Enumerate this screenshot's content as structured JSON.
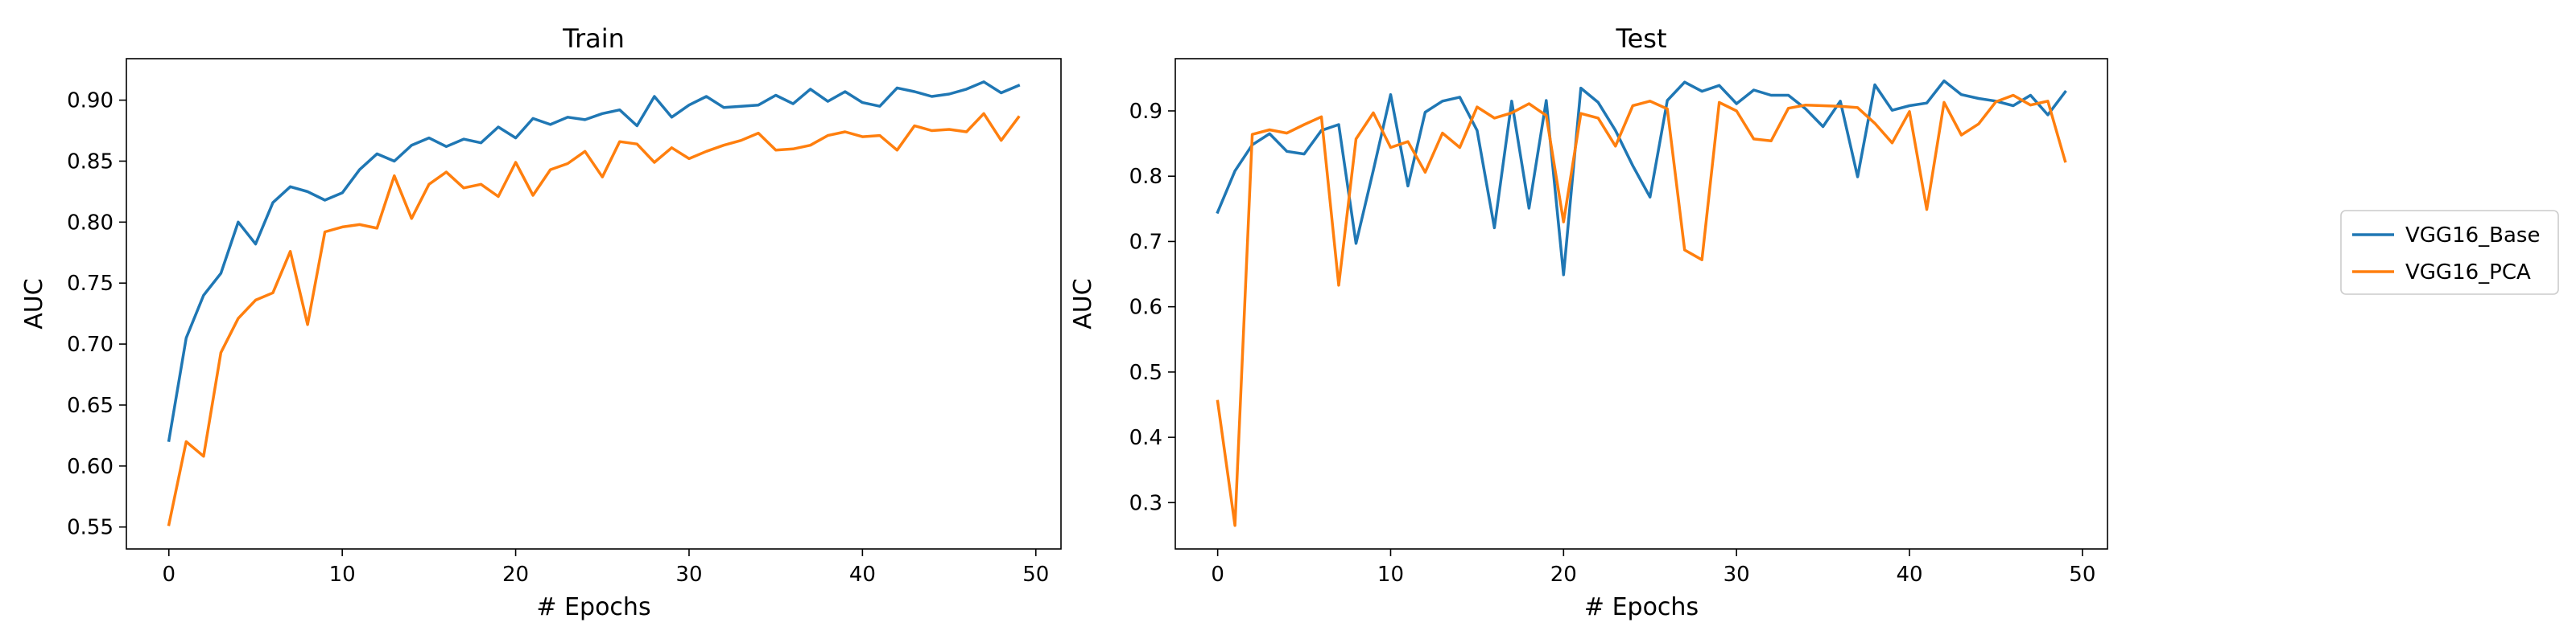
{
  "chart_data": [
    {
      "type": "line",
      "title": "Train",
      "xlabel": "# Epochs",
      "ylabel": "AUC",
      "xlim": [
        -2.45,
        51.45
      ],
      "ylim": [
        0.532,
        0.934
      ],
      "xticks": [
        0,
        10,
        20,
        30,
        40,
        50
      ],
      "yticks": [
        0.55,
        0.6,
        0.65,
        0.7,
        0.75,
        0.8,
        0.85,
        0.9
      ],
      "tick_format": 2,
      "grid": false,
      "x": [
        0,
        1,
        2,
        3,
        4,
        5,
        6,
        7,
        8,
        9,
        10,
        11,
        12,
        13,
        14,
        15,
        16,
        17,
        18,
        19,
        20,
        21,
        22,
        23,
        24,
        25,
        26,
        27,
        28,
        29,
        30,
        31,
        32,
        33,
        34,
        35,
        36,
        37,
        38,
        39,
        40,
        41,
        42,
        43,
        44,
        45,
        46,
        47,
        48,
        49
      ],
      "series": [
        {
          "name": "VGG16_Base",
          "color": "#1f77b4",
          "values": [
            0.621,
            0.705,
            0.74,
            0.758,
            0.8,
            0.782,
            0.816,
            0.829,
            0.825,
            0.818,
            0.824,
            0.843,
            0.856,
            0.85,
            0.863,
            0.869,
            0.862,
            0.868,
            0.865,
            0.878,
            0.869,
            0.885,
            0.88,
            0.886,
            0.884,
            0.889,
            0.892,
            0.879,
            0.903,
            0.886,
            0.896,
            0.903,
            0.894,
            0.895,
            0.896,
            0.904,
            0.897,
            0.909,
            0.899,
            0.907,
            0.898,
            0.895,
            0.91,
            0.907,
            0.903,
            0.905,
            0.909,
            0.915,
            0.906,
            0.912
          ]
        },
        {
          "name": "VGG16_PCA",
          "color": "#ff7f0e",
          "values": [
            0.552,
            0.62,
            0.608,
            0.693,
            0.721,
            0.736,
            0.742,
            0.776,
            0.716,
            0.792,
            0.796,
            0.798,
            0.795,
            0.838,
            0.803,
            0.831,
            0.841,
            0.828,
            0.831,
            0.821,
            0.849,
            0.822,
            0.843,
            0.848,
            0.858,
            0.837,
            0.866,
            0.864,
            0.849,
            0.861,
            0.852,
            0.858,
            0.863,
            0.867,
            0.873,
            0.859,
            0.86,
            0.863,
            0.871,
            0.874,
            0.87,
            0.871,
            0.859,
            0.879,
            0.875,
            0.876,
            0.874,
            0.889,
            0.867,
            0.886
          ]
        }
      ]
    },
    {
      "type": "line",
      "title": "Test",
      "xlabel": "# Epochs",
      "ylabel": "AUC",
      "xlim": [
        -2.45,
        51.45
      ],
      "ylim": [
        0.229,
        0.98
      ],
      "xticks": [
        0,
        10,
        20,
        30,
        40,
        50
      ],
      "yticks": [
        0.3,
        0.4,
        0.5,
        0.6,
        0.7,
        0.8,
        0.9
      ],
      "tick_format": 1,
      "grid": false,
      "x": [
        0,
        1,
        2,
        3,
        4,
        5,
        6,
        7,
        8,
        9,
        10,
        11,
        12,
        13,
        14,
        15,
        16,
        17,
        18,
        19,
        20,
        21,
        22,
        23,
        24,
        25,
        26,
        27,
        28,
        29,
        30,
        31,
        32,
        33,
        34,
        35,
        36,
        37,
        38,
        39,
        40,
        41,
        42,
        43,
        44,
        45,
        46,
        47,
        48,
        49
      ],
      "series": [
        {
          "name": "VGG16_Base",
          "color": "#1f77b4",
          "values": [
            0.745,
            0.808,
            0.848,
            0.865,
            0.838,
            0.834,
            0.87,
            0.879,
            0.697,
            0.809,
            0.925,
            0.785,
            0.898,
            0.915,
            0.921,
            0.87,
            0.721,
            0.915,
            0.751,
            0.916,
            0.649,
            0.935,
            0.913,
            0.87,
            0.816,
            0.768,
            0.916,
            0.944,
            0.93,
            0.939,
            0.911,
            0.932,
            0.924,
            0.924,
            0.903,
            0.876,
            0.915,
            0.799,
            0.94,
            0.901,
            0.908,
            0.912,
            0.946,
            0.925,
            0.919,
            0.915,
            0.908,
            0.924,
            0.894,
            0.929
          ]
        },
        {
          "name": "VGG16_PCA",
          "color": "#ff7f0e",
          "values": [
            0.455,
            0.265,
            0.864,
            0.871,
            0.866,
            0.879,
            0.891,
            0.633,
            0.857,
            0.897,
            0.844,
            0.853,
            0.806,
            0.866,
            0.844,
            0.906,
            0.889,
            0.897,
            0.911,
            0.893,
            0.73,
            0.896,
            0.889,
            0.846,
            0.908,
            0.915,
            0.903,
            0.687,
            0.672,
            0.913,
            0.9,
            0.857,
            0.854,
            0.904,
            0.909,
            0.908,
            0.907,
            0.905,
            0.881,
            0.851,
            0.899,
            0.749,
            0.913,
            0.863,
            0.88,
            0.914,
            0.924,
            0.909,
            0.915,
            0.823
          ]
        }
      ]
    }
  ],
  "legend": {
    "placement": "outside-right",
    "entries": [
      "VGG16_Base",
      "VGG16_PCA"
    ]
  }
}
